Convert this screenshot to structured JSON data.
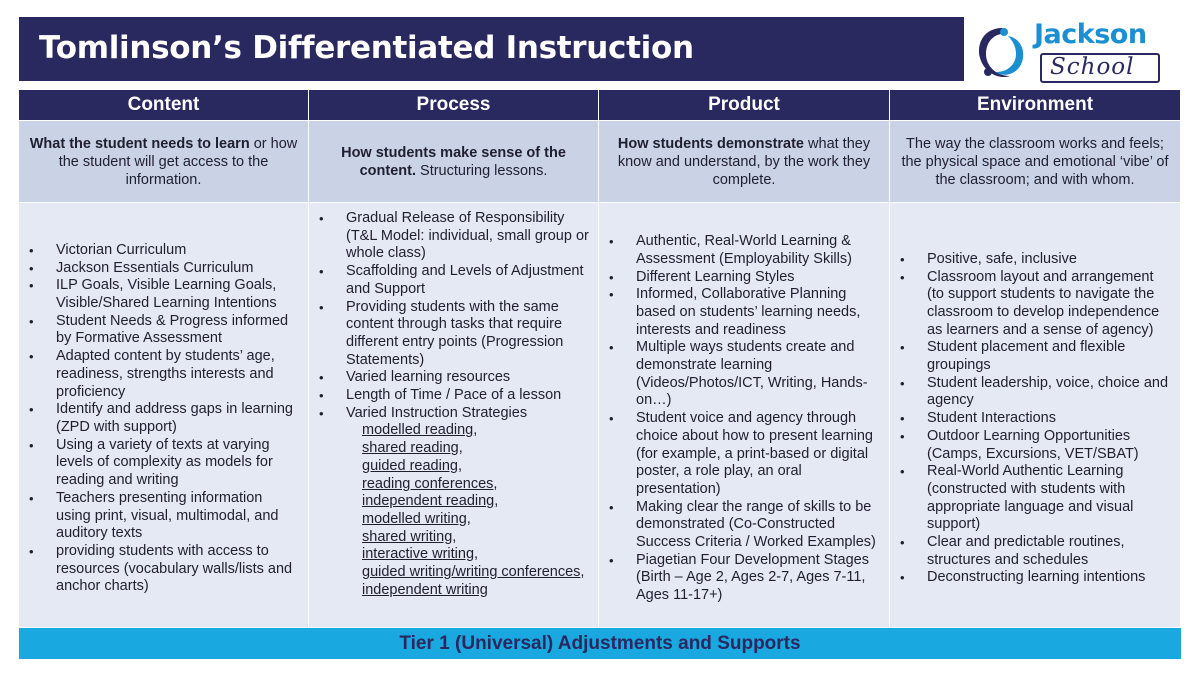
{
  "title": "Tomlinson’s Differentiated Instruction",
  "logo": {
    "word1": "Jackson",
    "word2": "School",
    "mark_icon": "swirl-figures-icon",
    "colors": {
      "blue": "#1c8fd1",
      "navy": "#29285f"
    }
  },
  "colors": {
    "header": "#29285f",
    "desc_bg": "#cad3e6",
    "body_bg": "#e5e9f3",
    "footer_bg": "#1aa8e0"
  },
  "columns": [
    {
      "heading": "Content",
      "desc_bold": "What the student needs to learn",
      "desc_rest": " or how the student will get access to the information.",
      "items": [
        "Victorian Curriculum",
        "Jackson Essentials Curriculum",
        "ILP Goals, Visible Learning Goals, Visible/Shared Learning Intentions",
        "Student Needs & Progress informed by Formative Assessment",
        "Adapted content by students’ age, readiness, strengths interests and proficiency",
        "Identify and address gaps in learning (ZPD with support)",
        "Using a variety of texts at varying levels of complexity as models for reading and writing",
        "Teachers presenting information using print, visual, multimodal, and auditory texts",
        "providing students with access to resources (vocabulary walls/lists and anchor charts)"
      ]
    },
    {
      "heading": "Process",
      "desc_bold": "How students make sense of the content.",
      "desc_rest": " Structuring lessons.",
      "items": [
        "Gradual Release of Responsibility (T&L Model: individual, small group or whole class)",
        "Scaffolding and Levels of Adjustment and Support",
        "Providing students with the same content through tasks that require different entry points (Progression Statements)",
        "Varied learning resources",
        "Length of Time / Pace of a lesson",
        "Varied Instruction Strategies"
      ],
      "strategies": [
        "modelled reading",
        "shared reading",
        "guided reading",
        "reading conferences",
        "independent reading",
        "modelled writing",
        "shared writing",
        "interactive writing",
        "guided writing/writing conferences",
        "independent writing"
      ],
      "comma": ","
    },
    {
      "heading": "Product",
      "desc_bold": "How students demonstrate",
      "desc_rest": " what they know and understand, by the work they complete.",
      "items": [
        "Authentic, Real-World Learning & Assessment (Employability Skills)",
        "Different Learning Styles",
        "Informed, Collaborative Planning based on students’ learning needs, interests and readiness",
        "Multiple ways students create and demonstrate learning (Videos/Photos/ICT, Writing, Hands-on…)",
        "Student voice and agency through choice about how to present learning (for example, a print-based or digital poster, a role play, an oral presentation)",
        "Making clear the range of skills to be demonstrated (Co-Constructed Success Criteria / Worked Examples)",
        "Piagetian Four Development Stages (Birth – Age 2, Ages 2-7, Ages 7-11, Ages 11-17+)"
      ]
    },
    {
      "heading": "Environment",
      "desc_bold": "",
      "desc_rest": "The way the classroom works and feels; the physical space and emotional ‘vibe’ of the classroom; and with whom.",
      "items": [
        "Positive, safe, inclusive",
        "Classroom layout and arrangement (to support students to navigate the classroom to develop independence as learners and a sense of agency)",
        "Student placement and flexible groupings",
        "Student leadership, voice, choice and agency",
        "Student Interactions",
        "Outdoor Learning Opportunities (Camps, Excursions, VET/SBAT)",
        "Real-World Authentic Learning (constructed with students with appropriate language and visual support)",
        "Clear and predictable routines, structures and schedules",
        "Deconstructing learning intentions"
      ]
    }
  ],
  "footer": "Tier 1 (Universal) Adjustments and Supports"
}
